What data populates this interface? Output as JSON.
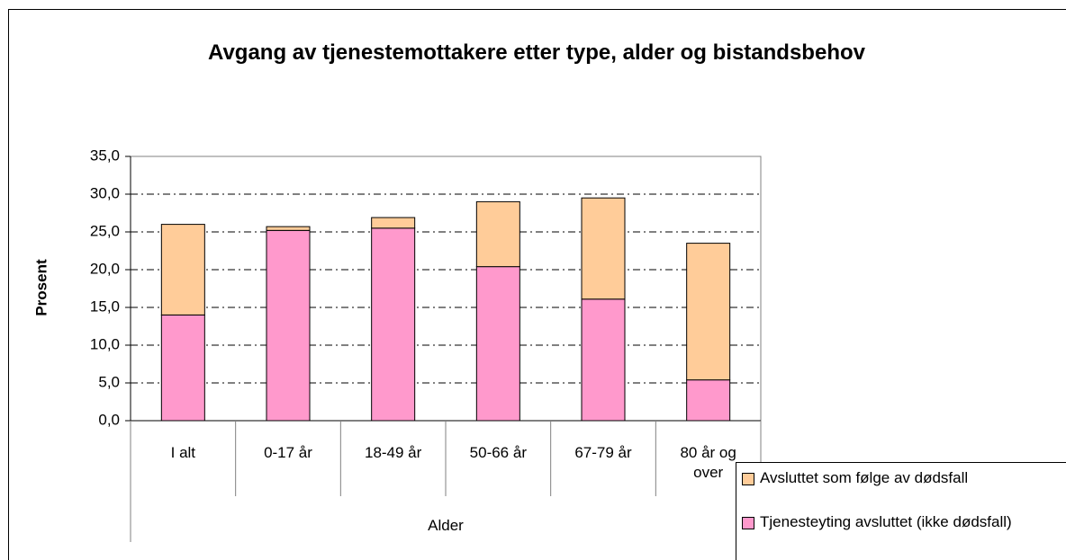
{
  "chart_data": {
    "type": "stacked_bar",
    "title": "Avgang av tjenestemottakere etter type, alder og bistandsbehov",
    "y_label": "Prosent",
    "x_label": "Alder",
    "categories": [
      "I alt",
      "0-17 år",
      "18-49 år",
      "50-66 år",
      "67-79 år",
      "80 år og over"
    ],
    "series": [
      {
        "name": "Tjenesteyting avsluttet (ikke dødsfall)",
        "color": "#ff99cc",
        "values": [
          14.0,
          25.2,
          25.5,
          20.4,
          16.1,
          5.4
        ]
      },
      {
        "name": "Avsluttet som følge av dødsfall",
        "color": "#ffcc99",
        "values": [
          12.0,
          0.5,
          1.4,
          8.6,
          13.4,
          18.1
        ]
      }
    ],
    "ylim": [
      0,
      35
    ],
    "yticks": [
      {
        "value": 0,
        "label": "0,0"
      },
      {
        "value": 5,
        "label": "5,0"
      },
      {
        "value": 10,
        "label": "10,0"
      },
      {
        "value": 15,
        "label": "15,0"
      },
      {
        "value": 20,
        "label": "20,0"
      },
      {
        "value": 25,
        "label": "25,0"
      },
      {
        "value": 30,
        "label": "30,0"
      },
      {
        "value": 35,
        "label": "35,0"
      }
    ],
    "grid": true
  }
}
